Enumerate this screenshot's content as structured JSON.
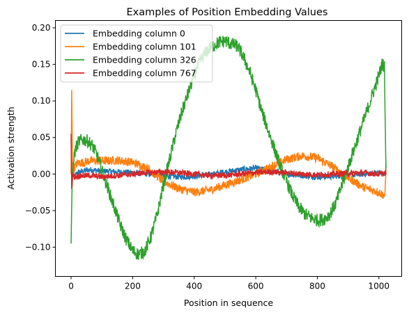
{
  "chart_data": {
    "type": "line",
    "title": "Examples of Position Embedding Values",
    "xlabel": "Position in sequence",
    "ylabel": "Activation strength",
    "xlim": [
      -51,
      1074
    ],
    "ylim": [
      -0.14,
      0.21
    ],
    "xticks": [
      0,
      200,
      400,
      600,
      800,
      1000
    ],
    "xtick_labels": [
      "0",
      "200",
      "400",
      "600",
      "800",
      "1000"
    ],
    "yticks": [
      -0.1,
      -0.05,
      0.0,
      0.05,
      0.1,
      0.15,
      0.2
    ],
    "ytick_labels": [
      "−0.10",
      "−0.05",
      "0.00",
      "0.05",
      "0.10",
      "0.15",
      "0.20"
    ],
    "grid": false,
    "legend_position": "top-left",
    "series": [
      {
        "name": "Embedding column 0",
        "color": "#1f77b4",
        "x": [
          0,
          2,
          5,
          10,
          20,
          40,
          60,
          80,
          100,
          120,
          150,
          200,
          250,
          300,
          350,
          400,
          450,
          500,
          550,
          600,
          650,
          700,
          750,
          800,
          850,
          900,
          950,
          1000,
          1020,
          1023
        ],
        "y": [
          0.05,
          -0.02,
          0.01,
          -0.005,
          0.002,
          0.004,
          0.006,
          0.005,
          0.004,
          0.004,
          0.003,
          0.002,
          0.0,
          -0.002,
          -0.004,
          -0.003,
          -0.001,
          0.003,
          0.006,
          0.008,
          0.004,
          0.0,
          -0.002,
          -0.004,
          -0.003,
          -0.002,
          0.0,
          0.002,
          0.0,
          0.01
        ]
      },
      {
        "name": "Embedding column 101",
        "color": "#ff7f0e",
        "x": [
          0,
          2,
          5,
          10,
          20,
          40,
          60,
          80,
          100,
          120,
          150,
          200,
          250,
          300,
          350,
          400,
          450,
          500,
          550,
          600,
          650,
          700,
          750,
          800,
          850,
          900,
          950,
          1000,
          1020,
          1023
        ],
        "y": [
          0.0,
          0.115,
          0.0,
          0.008,
          0.015,
          0.016,
          0.018,
          0.018,
          0.018,
          0.018,
          0.019,
          0.016,
          0.008,
          -0.01,
          -0.02,
          -0.025,
          -0.022,
          -0.015,
          -0.008,
          0.0,
          0.01,
          0.02,
          0.025,
          0.022,
          0.01,
          -0.005,
          -0.018,
          -0.025,
          -0.03,
          0.01
        ]
      },
      {
        "name": "Embedding column 326",
        "color": "#2ca02c",
        "x": [
          0,
          3,
          8,
          15,
          25,
          40,
          55,
          70,
          85,
          100,
          120,
          140,
          160,
          180,
          200,
          220,
          240,
          260,
          280,
          300,
          320,
          340,
          360,
          380,
          400,
          420,
          440,
          460,
          480,
          500,
          520,
          540,
          560,
          580,
          600,
          620,
          640,
          660,
          680,
          700,
          720,
          740,
          760,
          780,
          800,
          820,
          840,
          860,
          880,
          900,
          920,
          940,
          960,
          980,
          1000,
          1010,
          1018,
          1020,
          1023
        ],
        "y": [
          -0.095,
          -0.02,
          0.02,
          0.035,
          0.045,
          0.047,
          0.045,
          0.038,
          0.025,
          0.005,
          -0.02,
          -0.045,
          -0.07,
          -0.09,
          -0.105,
          -0.11,
          -0.105,
          -0.085,
          -0.055,
          -0.015,
          0.02,
          0.055,
          0.085,
          0.11,
          0.135,
          0.155,
          0.168,
          0.175,
          0.18,
          0.182,
          0.178,
          0.175,
          0.16,
          0.14,
          0.115,
          0.085,
          0.06,
          0.035,
          0.01,
          -0.01,
          -0.03,
          -0.045,
          -0.055,
          -0.06,
          -0.063,
          -0.062,
          -0.055,
          -0.04,
          -0.015,
          0.01,
          0.035,
          0.06,
          0.085,
          0.11,
          0.135,
          0.15,
          0.148,
          0.09,
          0.0
        ]
      },
      {
        "name": "Embedding column 767",
        "color": "#d62728",
        "x": [
          0,
          2,
          5,
          10,
          20,
          40,
          60,
          80,
          100,
          120,
          150,
          200,
          250,
          300,
          350,
          400,
          450,
          500,
          550,
          600,
          650,
          700,
          750,
          800,
          850,
          900,
          950,
          1000,
          1020,
          1023
        ],
        "y": [
          0.055,
          -0.02,
          0.0,
          -0.004,
          -0.003,
          -0.002,
          -0.002,
          -0.003,
          -0.004,
          -0.003,
          -0.002,
          0.0,
          0.002,
          0.003,
          0.002,
          0.0,
          -0.002,
          -0.002,
          0.0,
          0.002,
          0.003,
          0.002,
          0.0,
          -0.001,
          0.0,
          0.001,
          0.002,
          0.0,
          0.001,
          0.002
        ]
      }
    ]
  }
}
